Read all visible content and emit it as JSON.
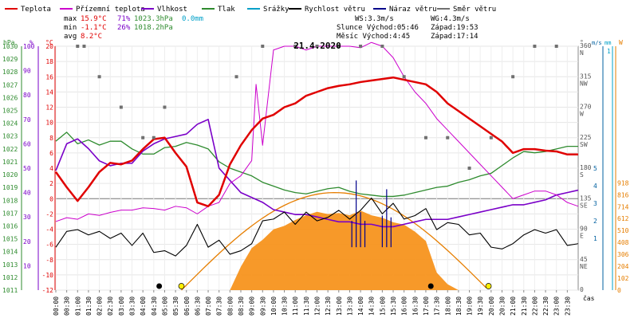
{
  "chart_data": {
    "type": "line",
    "title": "21.4.2020",
    "legend": [
      {
        "name": "Teplota",
        "color": "#e00000"
      },
      {
        "name": "Přízemní teplota",
        "color": "#cc00cc"
      },
      {
        "name": "Vlhkost",
        "color": "#7a00c8"
      },
      {
        "name": "Tlak",
        "color": "#2e8b2e"
      },
      {
        "name": "Srážky",
        "color": "#00a0c8"
      },
      {
        "name": "Rychlost větru",
        "color": "#000000"
      },
      {
        "name": "Náraz větru",
        "color": "#00008b"
      },
      {
        "name": "Směr větru",
        "color": "#707070"
      }
    ],
    "stats": {
      "max_label": "max",
      "max_temp": "15.9°C",
      "max_hum": "71%",
      "max_press": "1023.3hPa",
      "rain": "0.0mm",
      "min_label": "min",
      "min_temp": "-1.1°C",
      "min_hum": "26%",
      "min_press": "1018.2hPa",
      "avg_label": "avg",
      "avg_temp": "8.2°C",
      "ws": "WS:3.3m/s",
      "wg": "WG:4.3m/s",
      "sun": "Slunce Východ:05:46",
      "sun_set": "Západ:19:53",
      "moon": "Měsíc  Východ:4:45",
      "moon_set": "Západ:17:14"
    },
    "axes": {
      "hpa_unit": "hPa",
      "pct_unit": "%",
      "c_unit": "°C",
      "deg_unit": "°",
      "ms_unit": "m/s",
      "mm_unit": "mm",
      "w_unit": "W",
      "x_unit": "čas",
      "hpa_ticks": [
        "1030",
        "1029",
        "1028",
        "1027",
        "1026",
        "1025",
        "1024",
        "1023",
        "1022",
        "1021",
        "1020",
        "1019",
        "1018",
        "1017",
        "1016",
        "1015",
        "1014",
        "1013",
        "1012",
        "1011"
      ],
      "pct_ticks": [
        "100",
        "90",
        "80",
        "70",
        "60",
        "50",
        "40",
        "30",
        "20",
        "10"
      ],
      "c_ticks": [
        "20",
        "18",
        "16",
        "14",
        "12",
        "10",
        "8",
        "6",
        "4",
        "2",
        "0",
        "-2",
        "-4",
        "-6",
        "-8",
        "-10",
        "-12"
      ],
      "deg_ticks": [
        "360",
        "315",
        "270",
        "225",
        "180",
        "135",
        "90",
        "45",
        "0"
      ],
      "dir_ticks": [
        "N",
        "NW",
        "W",
        "SW",
        "S",
        "SE",
        "E",
        "NE",
        ""
      ],
      "ms_ticks": [
        "5",
        "4",
        "3",
        "2",
        "1"
      ],
      "mm_ticks": [
        "1"
      ],
      "w_ticks": [
        "918",
        "816",
        "714",
        "612",
        "510",
        "408",
        "306",
        "204",
        "102",
        "0"
      ],
      "x_ticks": [
        "00:00",
        "00:30",
        "01:00",
        "01:30",
        "02:00",
        "02:30",
        "03:00",
        "03:30",
        "04:00",
        "04:30",
        "05:00",
        "05:30",
        "06:00",
        "06:30",
        "07:00",
        "07:30",
        "08:00",
        "08:30",
        "09:00",
        "09:30",
        "10:00",
        "10:30",
        "11:00",
        "11:30",
        "12:00",
        "12:30",
        "13:00",
        "13:30",
        "14:00",
        "14:30",
        "15:00",
        "15:30",
        "16:00",
        "16:30",
        "17:00",
        "17:30",
        "18:00",
        "18:30",
        "19:00",
        "19:30",
        "20:00",
        "20:30",
        "21:00",
        "21:30",
        "22:00",
        "22:30",
        "23:00",
        "23:30"
      ]
    },
    "series": [
      {
        "name": "Teplota",
        "x_hours": [
          0,
          0.5,
          1,
          1.5,
          2,
          2.5,
          3,
          3.5,
          4,
          4.5,
          5,
          5.5,
          6,
          6.5,
          7,
          7.5,
          8,
          8.5,
          9,
          9.5,
          10,
          10.5,
          11,
          11.5,
          12,
          12.5,
          13,
          13.5,
          14,
          14.5,
          15,
          15.5,
          16,
          16.5,
          17,
          17.5,
          18,
          18.5,
          19,
          19.5,
          20,
          20.5,
          21,
          21.5,
          22,
          22.5,
          23,
          23.5,
          24
        ],
        "values": [
          3.5,
          1.5,
          -0.3,
          1.5,
          3.5,
          4.7,
          4.5,
          5.0,
          6.5,
          7.8,
          8.0,
          6.0,
          4.2,
          -0.5,
          -1.0,
          0.5,
          4.5,
          7.0,
          9.0,
          10.5,
          11.0,
          12.0,
          12.5,
          13.5,
          14.0,
          14.5,
          14.8,
          15.0,
          15.3,
          15.5,
          15.7,
          15.9,
          15.6,
          15.3,
          15.0,
          14.0,
          12.5,
          11.5,
          10.5,
          9.5,
          8.5,
          7.5,
          6.0,
          6.5,
          6.5,
          6.3,
          6.2,
          5.8,
          5.8
        ]
      },
      {
        "name": "Přízemní teplota",
        "x_hours": [
          0,
          0.5,
          1,
          1.5,
          2,
          2.5,
          3,
          3.5,
          4,
          4.5,
          5,
          5.5,
          6,
          6.5,
          7,
          7.5,
          8,
          8.5,
          9,
          9.2,
          9.5,
          10,
          10.5,
          11,
          11.5,
          12,
          12.5,
          13,
          13.5,
          14,
          14.5,
          15,
          15.5,
          16,
          16.5,
          17,
          17.5,
          18,
          18.5,
          19,
          19.5,
          20,
          20.5,
          21,
          21.5,
          22,
          22.5,
          23,
          23.5,
          24
        ],
        "values": [
          -3.0,
          -2.5,
          -2.7,
          -2.0,
          -2.2,
          -1.8,
          -1.5,
          -1.5,
          -1.2,
          -1.3,
          -1.5,
          -1.0,
          -1.2,
          -2.0,
          -1.0,
          -0.5,
          2.0,
          3.0,
          5.0,
          15.0,
          7.0,
          19.5,
          20.0,
          20.0,
          19.5,
          20.0,
          20.0,
          20.0,
          20.0,
          19.8,
          20.5,
          20.0,
          18.5,
          16.0,
          14.0,
          12.5,
          10.5,
          9.0,
          7.5,
          6.0,
          4.5,
          3.0,
          1.5,
          0.0,
          0.5,
          1.0,
          1.0,
          0.5,
          -0.5,
          -1.0
        ]
      },
      {
        "name": "Vlhkost",
        "x_hours": [
          0,
          0.5,
          1,
          1.5,
          2,
          2.5,
          3,
          3.5,
          4,
          4.5,
          5,
          5.5,
          6,
          6.5,
          7,
          7.5,
          8,
          8.5,
          9,
          9.5,
          10,
          10.5,
          11,
          11.5,
          12,
          12.5,
          13,
          13.5,
          14,
          14.5,
          15,
          15.5,
          16,
          16.5,
          17,
          17.5,
          18,
          18.5,
          19,
          19.5,
          20,
          20.5,
          21,
          21.5,
          22,
          22.5,
          23,
          23.5,
          24
        ],
        "values": [
          49,
          60,
          62,
          58,
          53,
          51,
          52,
          52,
          57,
          60,
          62,
          63,
          64,
          68,
          70,
          50,
          45,
          40,
          38,
          36,
          33,
          32,
          31,
          31,
          30,
          29,
          28,
          28,
          27,
          27,
          26,
          26,
          27,
          28,
          29,
          29,
          29,
          30,
          31,
          32,
          33,
          34,
          35,
          35,
          36,
          37,
          39,
          40,
          41
        ]
      },
      {
        "name": "Tlak",
        "x_hours": [
          0,
          0.5,
          1,
          1.5,
          2,
          2.5,
          3,
          3.5,
          4,
          4.5,
          5,
          5.5,
          6,
          6.5,
          7,
          7.5,
          8,
          8.5,
          9,
          9.5,
          10,
          10.5,
          11,
          11.5,
          12,
          12.5,
          13,
          13.5,
          14,
          14.5,
          15,
          15.5,
          16,
          16.5,
          17,
          17.5,
          18,
          18.5,
          19,
          19.5,
          20,
          20.5,
          21,
          21.5,
          22,
          22.5,
          23,
          23.5,
          24
        ],
        "values": [
          1022.6,
          1023.3,
          1022.4,
          1022.7,
          1022.3,
          1022.6,
          1022.6,
          1022.0,
          1021.6,
          1021.6,
          1022.1,
          1022.2,
          1022.5,
          1022.3,
          1022.0,
          1021.0,
          1020.5,
          1020.2,
          1019.9,
          1019.4,
          1019.1,
          1018.8,
          1018.6,
          1018.5,
          1018.7,
          1018.9,
          1019.0,
          1018.7,
          1018.5,
          1018.4,
          1018.3,
          1018.3,
          1018.4,
          1018.6,
          1018.8,
          1019.0,
          1019.1,
          1019.4,
          1019.6,
          1019.9,
          1020.1,
          1020.7,
          1021.3,
          1021.8,
          1021.7,
          1021.8,
          1022.0,
          1022.2,
          1022.2
        ]
      },
      {
        "name": "Rychlost větru",
        "x_hours": [
          0,
          0.5,
          1,
          1.5,
          2,
          2.5,
          3,
          3.5,
          4,
          4.5,
          5,
          5.5,
          6,
          6.5,
          7,
          7.5,
          8,
          8.5,
          9,
          9.5,
          10,
          10.5,
          11,
          11.5,
          12,
          12.5,
          13,
          13.5,
          14,
          14.5,
          15,
          15.5,
          16,
          16.5,
          17,
          17.5,
          18,
          18.5,
          19,
          19.5,
          20,
          20.5,
          21,
          21.5,
          22,
          22.5,
          23,
          23.5,
          24
        ],
        "values": [
          0.5,
          1.4,
          1.5,
          1.2,
          1.4,
          1.0,
          1.3,
          0.6,
          1.3,
          0.2,
          0.3,
          0.0,
          0.6,
          1.8,
          0.5,
          0.9,
          0.1,
          0.3,
          0.7,
          2.0,
          2.1,
          2.5,
          1.8,
          2.5,
          2.0,
          2.2,
          2.6,
          2.1,
          2.6,
          3.3,
          2.4,
          3.0,
          2.1,
          2.3,
          2.7,
          1.5,
          1.9,
          1.8,
          1.2,
          1.3,
          0.5,
          0.4,
          0.7,
          1.2,
          1.5,
          1.3,
          1.5,
          0.6,
          0.7
        ]
      },
      {
        "name": "Náraz větru",
        "x_hours": [
          13.6,
          13.8,
          14.0,
          14.2,
          15.0,
          15.2,
          15.4
        ],
        "values": [
          2.0,
          4.3,
          2.5,
          2.0,
          2.3,
          3.8,
          2.2
        ]
      },
      {
        "name": "Sluneční záření",
        "x_hours": [
          8.0,
          8.5,
          9,
          9.5,
          10,
          10.5,
          11,
          11.5,
          12,
          12.5,
          13,
          13.5,
          14,
          14.5,
          15,
          15.5,
          16,
          16.5,
          17,
          17.5,
          18,
          18.5
        ],
        "values": [
          0,
          200,
          360,
          430,
          520,
          550,
          600,
          640,
          670,
          650,
          660,
          640,
          680,
          640,
          620,
          580,
          560,
          500,
          420,
          150,
          50,
          0
        ]
      },
      {
        "name": "Směr větru",
        "x_hours": [
          1.0,
          1.3,
          2.0,
          3.0,
          4.0,
          4.5,
          5.0,
          8.3,
          9.5,
          11.0,
          12.0,
          13.0,
          14.0,
          15.0,
          16.0,
          17.0,
          18.0,
          19.0,
          20.0,
          21.0,
          22.0,
          23.0
        ],
        "values": [
          360,
          360,
          315,
          270,
          225,
          225,
          270,
          315,
          360,
          360,
          360,
          360,
          360,
          360,
          315,
          225,
          225,
          180,
          225,
          315,
          360,
          360
        ]
      }
    ]
  }
}
